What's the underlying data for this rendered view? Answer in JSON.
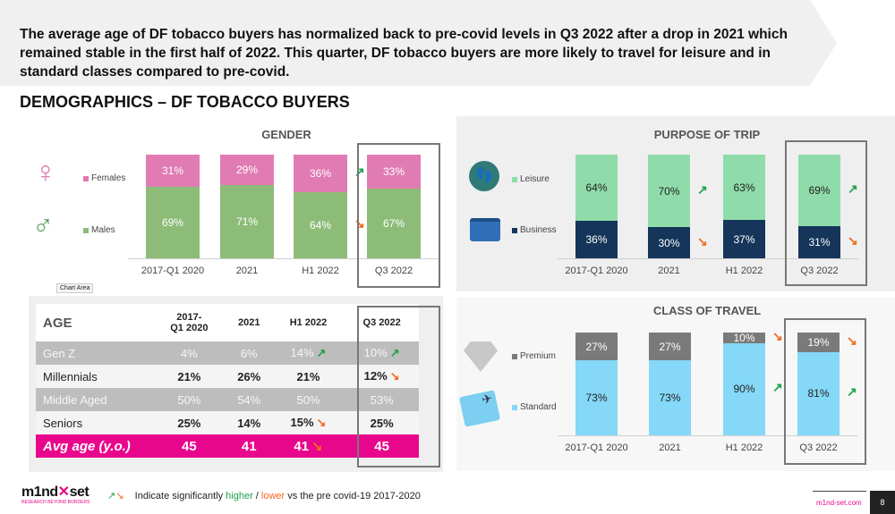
{
  "headline": "The average age of DF tobacco buyers has normalized back to pre-covid levels in Q3 2022 after a drop in 2021 which remained stable in the first half of 2022. This quarter, DF tobacco buyers are more likely to travel for leisure and in standard classes compared to pre-covid.",
  "section_title": "DEMOGRAPHICS – DF TOBACCO BUYERS",
  "periods": [
    "2017-Q1 2020",
    "2021",
    "H1 2022",
    "Q3 2022"
  ],
  "tooltip": "Chart Area",
  "colors": {
    "female": "#e07cb3",
    "male": "#8dbc78",
    "leisure": "#8fdcaa",
    "business": "#15365a",
    "premium": "#7a7a7a",
    "standard": "#85d8f7",
    "up": "#1aa34a",
    "down": "#f26a1b",
    "avg": "#e8078c"
  },
  "gender": {
    "title": "GENDER",
    "legend": [
      "Females",
      "Males"
    ],
    "series": [
      {
        "name": "Males",
        "values": [
          69,
          71,
          64,
          67
        ],
        "labels": [
          "69%",
          "71%",
          "64%",
          "67%"
        ],
        "arrows": [
          "",
          "",
          "down",
          ""
        ]
      },
      {
        "name": "Females",
        "values": [
          31,
          29,
          36,
          33
        ],
        "labels": [
          "31%",
          "29%",
          "36%",
          "33%"
        ],
        "arrows": [
          "",
          "",
          "up",
          ""
        ]
      }
    ]
  },
  "purpose": {
    "title": "PURPOSE OF TRIP",
    "legend": [
      "Leisure",
      "Business"
    ],
    "series": [
      {
        "name": "Business",
        "values": [
          36,
          30,
          37,
          31
        ],
        "labels": [
          "36%",
          "30%",
          "37%",
          "31%"
        ],
        "arrows": [
          "",
          "down",
          "",
          "down"
        ]
      },
      {
        "name": "Leisure",
        "values": [
          64,
          70,
          63,
          69
        ],
        "labels": [
          "64%",
          "70%",
          "63%",
          "69%"
        ],
        "arrows": [
          "",
          "up",
          "",
          "up"
        ]
      }
    ]
  },
  "class": {
    "title": "CLASS OF TRAVEL",
    "legend": [
      "Premium",
      "Standard"
    ],
    "series": [
      {
        "name": "Standard",
        "values": [
          73,
          73,
          90,
          81
        ],
        "labels": [
          "73%",
          "73%",
          "90%",
          "81%"
        ],
        "arrows": [
          "",
          "",
          "up",
          "up"
        ]
      },
      {
        "name": "Premium",
        "values": [
          27,
          27,
          10,
          19
        ],
        "labels": [
          "27%",
          "27%",
          "10%",
          "19%"
        ],
        "arrows": [
          "",
          "",
          "down",
          "down"
        ]
      }
    ]
  },
  "age": {
    "title": "AGE",
    "headers": [
      "2017-\nQ1 2020",
      "2021",
      "H1 2022",
      "Q3 2022"
    ],
    "rows": [
      {
        "label": "Gen Z",
        "values": [
          "4%",
          "6%",
          "14%",
          "10%"
        ],
        "arrows": [
          "",
          "",
          "up",
          "up"
        ]
      },
      {
        "label": "Millennials",
        "values": [
          "21%",
          "26%",
          "21%",
          "12%"
        ],
        "arrows": [
          "",
          "",
          "",
          "down"
        ]
      },
      {
        "label": "Middle Aged",
        "values": [
          "50%",
          "54%",
          "50%",
          "53%"
        ],
        "arrows": [
          "",
          "",
          "",
          ""
        ]
      },
      {
        "label": "Seniors",
        "values": [
          "25%",
          "14%",
          "15%",
          "25%"
        ],
        "arrows": [
          "",
          "",
          "down",
          ""
        ]
      },
      {
        "label": "Avg age (y.o.)",
        "values": [
          "45",
          "41",
          "41",
          "45"
        ],
        "arrows": [
          "",
          "",
          "down",
          ""
        ]
      }
    ]
  },
  "footer": {
    "pre": "Indicate significantly ",
    "higher": "higher",
    "sep": " / ",
    "lower": "lower",
    "post": " vs the pre covid-19 2017-2020",
    "site": "m1nd-set.com",
    "page": "8",
    "logo": "m1nd-set",
    "logo_tag": "RESEARCH BEYOND BORDERS"
  }
}
